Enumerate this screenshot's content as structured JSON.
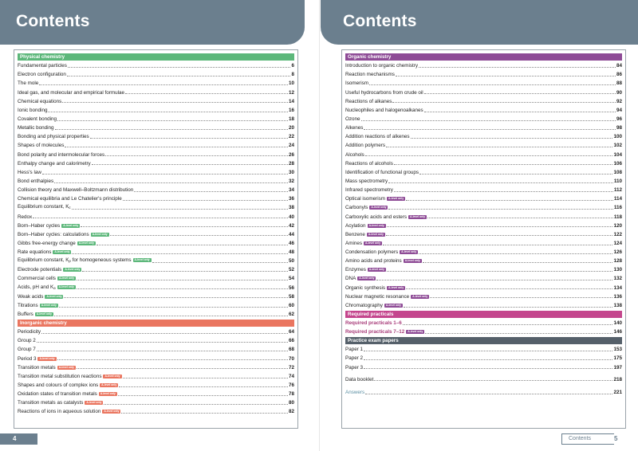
{
  "left": {
    "title": "Contents",
    "page_number": "4",
    "sections": [
      {
        "name": "Physical chemistry",
        "color": "#5cb77a",
        "items": [
          {
            "t": "Fundamental particles",
            "p": "6"
          },
          {
            "t": "Electron configuration",
            "p": "8"
          },
          {
            "t": "The mole",
            "p": "10"
          },
          {
            "t": "Ideal gas, and molecular and empirical formulae",
            "p": "12"
          },
          {
            "t": "Chemical equations",
            "p": "14"
          },
          {
            "t": "Ionic bonding",
            "p": "16"
          },
          {
            "t": "Covalent bonding",
            "p": "18"
          },
          {
            "t": "Metallic bonding",
            "p": "20"
          },
          {
            "t": "Bonding and physical properties",
            "p": "22"
          },
          {
            "t": "Shapes of molecules",
            "p": "24"
          },
          {
            "t": "Bond polarity and intermolecular forces",
            "p": "26"
          },
          {
            "t": "Enthalpy change and calorimetry",
            "p": "28"
          },
          {
            "t": "Hess's law",
            "p": "30"
          },
          {
            "t": "Bond enthalpies",
            "p": "32"
          },
          {
            "t": "Collision theory and Maxwell–Boltzmann distribution",
            "p": "34"
          },
          {
            "t": "Chemical equilibria and Le Chatelier's principle",
            "p": "36"
          },
          {
            "t": "Equilibrium constant, K",
            "sub": "c",
            "p": "38"
          },
          {
            "t": "Redox",
            "p": "40"
          },
          {
            "t": "Born–Haber cycles",
            "badge": "A-level only",
            "p": "42"
          },
          {
            "t": "Born–Haber cycles: calculations",
            "badge": "A-level only",
            "p": "44"
          },
          {
            "t": "Gibbs free-energy change",
            "badge": "A-level only",
            "p": "46"
          },
          {
            "t": "Rate equations",
            "badge": "A-level only",
            "p": "48"
          },
          {
            "t": "Equilibrium constant, K",
            "sub": "p",
            "t2": " for homogeneous systems",
            "badge": "A-level only",
            "p": "50"
          },
          {
            "t": "Electrode potentials",
            "badge": "A-level only",
            "p": "52"
          },
          {
            "t": "Commercial cells",
            "badge": "A-level only",
            "p": "54"
          },
          {
            "t": "Acids, pH and K",
            "sub": "a",
            "badge": "A-level only",
            "p": "56"
          },
          {
            "t": "Weak acids",
            "badge": "A-level only",
            "p": "58"
          },
          {
            "t": "Titrations",
            "badge": "A-level only",
            "p": "60"
          },
          {
            "t": "Buffers",
            "badge": "A-level only",
            "p": "62"
          }
        ]
      },
      {
        "name": "Inorganic chemistry",
        "color": "#ea7660",
        "items": [
          {
            "t": "Periodicity",
            "p": "64"
          },
          {
            "t": "Group 2",
            "p": "66"
          },
          {
            "t": "Group 7",
            "p": "68"
          },
          {
            "t": "Period 3",
            "badge": "A-level only",
            "p": "70"
          },
          {
            "t": "Transition metals",
            "badge": "A-level only",
            "p": "72"
          },
          {
            "t": "Transition metal substitution reactions",
            "badge": "A-level only",
            "p": "74"
          },
          {
            "t": "Shapes and colours of complex ions",
            "badge": "A-level only",
            "p": "76"
          },
          {
            "t": "Oxidation states of transition metals",
            "badge": "A-level only",
            "p": "78"
          },
          {
            "t": "Transition metals as catalysts",
            "badge": "A-level only",
            "p": "80"
          },
          {
            "t": "Reactions of ions in aqueous solution",
            "badge": "A-level only",
            "p": "82"
          }
        ]
      }
    ]
  },
  "right": {
    "title": "Contents",
    "footer_label": "Contents",
    "page_number": "5",
    "sections": [
      {
        "name": "Organic chemistry",
        "color": "#8e4b96",
        "items": [
          {
            "t": "Introduction to organic chemistry",
            "p": "84"
          },
          {
            "t": "Reaction mechanisms",
            "p": "86"
          },
          {
            "t": "Isomerism",
            "p": "88"
          },
          {
            "t": "Useful hydrocarbons from crude oil",
            "p": "90"
          },
          {
            "t": "Reactions of alkanes",
            "p": "92"
          },
          {
            "t": "Nucleophiles and halogenoalkanes",
            "p": "94"
          },
          {
            "t": "Ozone",
            "p": "96"
          },
          {
            "t": "Alkenes",
            "p": "98"
          },
          {
            "t": "Addition reactions of alkenes",
            "p": "100"
          },
          {
            "t": "Addition polymers",
            "p": "102"
          },
          {
            "t": "Alcohols",
            "p": "104"
          },
          {
            "t": "Reactions of alcohols",
            "p": "106"
          },
          {
            "t": "Identification of functional groups",
            "p": "108"
          },
          {
            "t": "Mass spectrometry",
            "p": "110"
          },
          {
            "t": "Infrared spectrometry",
            "p": "112"
          },
          {
            "t": "Optical isomerism",
            "badge": "A-level only",
            "p": "114"
          },
          {
            "t": "Carbonyls",
            "badge": "A-level only",
            "p": "116"
          },
          {
            "t": "Carboxylic acids and esters",
            "badge": "A-level only",
            "p": "118"
          },
          {
            "t": "Acylation",
            "badge": "A-level only",
            "p": "120"
          },
          {
            "t": "Benzene",
            "badge": "A-level only",
            "p": "122"
          },
          {
            "t": "Amines",
            "badge": "A-level only",
            "p": "124"
          },
          {
            "t": "Condensation polymers",
            "badge": "A-level only",
            "p": "126"
          },
          {
            "t": "Amino acids and proteins",
            "badge": "A-level only",
            "p": "128"
          },
          {
            "t": "Enzymes",
            "badge": "A-level only",
            "p": "130"
          },
          {
            "t": "DNA",
            "badge": "A-level only",
            "p": "132"
          },
          {
            "t": "Organic synthesis",
            "badge": "A-level only",
            "p": "134"
          },
          {
            "t": "Nuclear magnetic resonance",
            "badge": "A-level only",
            "p": "136"
          },
          {
            "t": "Chromatography",
            "badge": "A-level only",
            "p": "138"
          }
        ]
      },
      {
        "name": "Required practicals",
        "color": "#c4468d",
        "items": [
          {
            "t": "Required practicals 1–6",
            "p": "140",
            "style": "req"
          },
          {
            "t": "Required practicals 7–12",
            "badge": "A-level only",
            "p": "146",
            "style": "req"
          }
        ]
      },
      {
        "name": "Practice exam papers",
        "color": "#55606a",
        "items": [
          {
            "t": "Paper 1",
            "p": "153"
          },
          {
            "t": "Paper 2",
            "p": "175"
          },
          {
            "t": "Paper 3",
            "p": "197"
          },
          {
            "t": "Data booklet",
            "p": "218",
            "style": "gap"
          },
          {
            "t": "Answers",
            "p": "221",
            "style": "answers"
          }
        ]
      }
    ]
  }
}
